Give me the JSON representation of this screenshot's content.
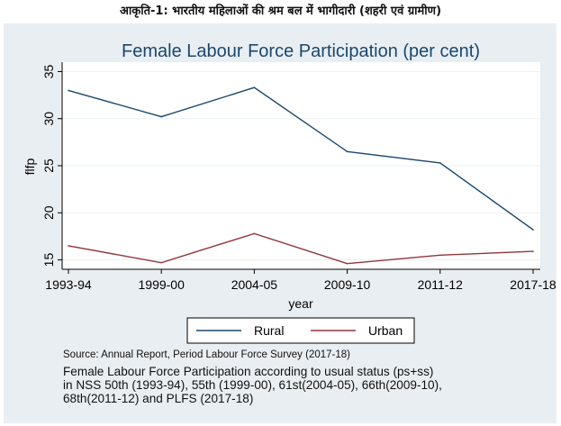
{
  "figure_caption": "आकृति-1: भारतीय महिलाओं की श्रम बल में भागीदारी (शहरी एवं ग्रामीण)",
  "chart_data": {
    "type": "line",
    "title": "Female Labour Force Participation (per cent)",
    "xlabel": "year",
    "ylabel": "flfp",
    "categories": [
      "1993-94",
      "1999-00",
      "2004-05",
      "2009-10",
      "2011-12",
      "2017-18"
    ],
    "yticks": [
      "15",
      "20",
      "25",
      "30",
      "35"
    ],
    "ylim": [
      14,
      36
    ],
    "grid": true,
    "legend_position": "bottom",
    "series": [
      {
        "name": "Rural",
        "color": "#1a476f",
        "values": [
          33.0,
          30.2,
          33.3,
          26.5,
          25.3,
          18.2
        ]
      },
      {
        "name": "Urban",
        "color": "#90353b",
        "values": [
          16.5,
          14.7,
          17.8,
          14.6,
          15.5,
          15.9
        ]
      }
    ]
  },
  "source_note": "Source: Annual Report, Period Labour Force Survey (2017-18)",
  "description_lines": [
    "Female Labour Force Participation according to usual status (ps+ss)",
    "in NSS 50th (1993-94), 55th (1999-00), 61st(2004-05), 66th(2009-10),",
    "68th(2011-12) and PLFS (2017-18)"
  ]
}
